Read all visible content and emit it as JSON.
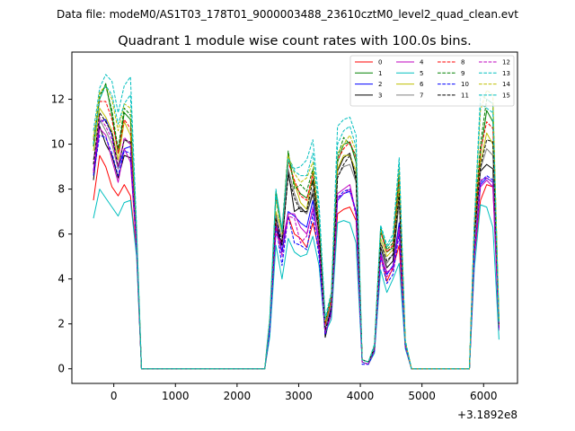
{
  "suptitle": "Data file: modeM0/AS1T03_178T01_9000003488_23610cztM0_level2_quad_clean.evt",
  "chart_data": {
    "type": "line",
    "title": "Quadrant 1 module wise count rates with 100.0s bins.",
    "xlabel": "",
    "ylabel": "",
    "offset_label": "+3.1892e8",
    "xlim": [
      -680,
      6550
    ],
    "ylim": [
      -0.65,
      14.1
    ],
    "xticks": [
      0,
      1000,
      2000,
      3000,
      4000,
      5000,
      6000
    ],
    "xtick_labels": [
      "0",
      "1000",
      "2000",
      "3000",
      "4000",
      "5000",
      "6000"
    ],
    "yticks": [
      0,
      2,
      4,
      6,
      8,
      10,
      12
    ],
    "ytick_labels": [
      "0",
      "2",
      "4",
      "6",
      "8",
      "10",
      "12"
    ],
    "legend_position": "upper right",
    "x": [
      -330,
      -230,
      -130,
      -30,
      70,
      170,
      270,
      370,
      450,
      2450,
      2530,
      2630,
      2730,
      2830,
      2930,
      3030,
      3130,
      3230,
      3330,
      3430,
      3530,
      3630,
      3730,
      3830,
      3930,
      4030,
      4130,
      4230,
      4330,
      4430,
      4530,
      4630,
      4730,
      4830,
      5770,
      5850,
      5950,
      6050,
      6150,
      6250
    ],
    "series": [
      {
        "name": "0",
        "color": "#ff0000",
        "dash": "solid",
        "values": [
          7.5,
          9.5,
          9.0,
          8.1,
          7.7,
          8.2,
          7.7,
          5.2,
          0.0,
          0.0,
          1.5,
          6.5,
          5.2,
          6.8,
          6.0,
          5.8,
          5.4,
          6.5,
          5.3,
          1.6,
          2.5,
          6.9,
          7.1,
          7.2,
          6.6,
          0.3,
          0.2,
          0.8,
          5.0,
          3.9,
          4.5,
          5.5,
          1.0,
          0.0,
          0.0,
          5.0,
          7.5,
          8.2,
          8.1,
          2.2
        ]
      },
      {
        "name": "1",
        "color": "#008000",
        "dash": "solid",
        "values": [
          10.0,
          12.0,
          12.7,
          11.3,
          9.6,
          11.4,
          11.1,
          6.0,
          0.0,
          0.0,
          2.0,
          7.8,
          6.1,
          9.6,
          8.2,
          7.8,
          7.6,
          8.4,
          6.3,
          2.0,
          3.2,
          9.2,
          10.0,
          10.1,
          9.2,
          0.4,
          0.3,
          1.0,
          6.1,
          5.2,
          5.4,
          8.5,
          1.2,
          0.0,
          0.0,
          6.3,
          9.6,
          11.5,
          11.0,
          2.0
        ]
      },
      {
        "name": "2",
        "color": "#0000ff",
        "dash": "solid",
        "values": [
          8.8,
          11.0,
          11.1,
          10.4,
          8.9,
          9.8,
          9.9,
          5.4,
          0.0,
          0.0,
          1.9,
          6.9,
          5.2,
          7.0,
          6.8,
          6.5,
          6.3,
          7.5,
          5.4,
          1.5,
          2.8,
          7.5,
          7.8,
          7.9,
          7.0,
          0.3,
          0.2,
          0.8,
          5.2,
          4.2,
          4.6,
          6.5,
          1.0,
          0.0,
          0.0,
          5.1,
          8.2,
          8.5,
          8.3,
          1.8
        ]
      },
      {
        "name": "3",
        "color": "#000000",
        "dash": "solid",
        "values": [
          8.4,
          10.8,
          10.0,
          9.5,
          8.5,
          9.5,
          9.4,
          5.4,
          0.0,
          0.0,
          1.8,
          6.3,
          5.5,
          8.8,
          7.0,
          7.2,
          6.9,
          7.8,
          6.0,
          1.4,
          2.6,
          8.8,
          9.4,
          9.6,
          8.4,
          0.4,
          0.3,
          0.9,
          5.4,
          4.5,
          4.8,
          7.5,
          1.1,
          0.0,
          0.0,
          5.8,
          8.8,
          9.1,
          8.9,
          1.9
        ]
      },
      {
        "name": "4",
        "color": "#bf00bf",
        "dash": "solid",
        "values": [
          8.7,
          10.7,
          10.4,
          9.3,
          8.3,
          9.8,
          9.2,
          5.3,
          0.0,
          0.0,
          1.7,
          6.0,
          5.6,
          6.9,
          6.9,
          6.3,
          6.0,
          7.1,
          5.8,
          1.6,
          2.4,
          7.8,
          8.0,
          8.2,
          6.9,
          0.3,
          0.2,
          0.8,
          5.1,
          4.3,
          4.5,
          6.2,
          1.0,
          0.0,
          0.0,
          5.0,
          8.1,
          8.4,
          8.1,
          1.7
        ]
      },
      {
        "name": "5",
        "color": "#00bfbf",
        "dash": "solid",
        "values": [
          6.7,
          8.0,
          7.6,
          7.2,
          6.8,
          7.4,
          7.5,
          5.0,
          0.0,
          0.0,
          1.4,
          5.5,
          4.0,
          5.8,
          5.2,
          5.0,
          5.1,
          5.9,
          4.6,
          1.6,
          2.2,
          6.5,
          6.6,
          6.5,
          5.6,
          0.3,
          0.2,
          0.7,
          4.4,
          3.4,
          4.0,
          4.7,
          0.9,
          0.0,
          0.0,
          4.5,
          7.3,
          7.2,
          6.3,
          1.3
        ]
      },
      {
        "name": "6",
        "color": "#bfbf00",
        "dash": "solid",
        "values": [
          9.7,
          11.6,
          11.2,
          10.6,
          9.3,
          11.0,
          10.4,
          5.7,
          0.0,
          0.0,
          2.0,
          7.0,
          6.1,
          9.3,
          8.3,
          7.4,
          7.1,
          8.8,
          6.3,
          1.9,
          3.0,
          8.9,
          9.5,
          9.5,
          8.8,
          0.4,
          0.3,
          0.9,
          5.8,
          5.0,
          5.3,
          8.0,
          1.1,
          0.0,
          0.0,
          6.0,
          9.2,
          10.5,
          10.0,
          1.9
        ]
      },
      {
        "name": "7",
        "color": "#808080",
        "dash": "solid",
        "values": [
          9.3,
          11.1,
          10.6,
          10.0,
          8.9,
          10.2,
          10.0,
          5.5,
          0.0,
          0.0,
          1.9,
          6.8,
          5.8,
          8.9,
          7.8,
          7.1,
          6.9,
          8.0,
          6.1,
          1.8,
          2.9,
          8.6,
          9.0,
          9.1,
          8.3,
          0.4,
          0.3,
          0.9,
          5.6,
          4.7,
          5.1,
          7.6,
          1.1,
          0.0,
          0.0,
          5.8,
          8.9,
          9.8,
          9.5,
          2.0
        ]
      },
      {
        "name": "8",
        "color": "#ff0000",
        "dash": "dashed",
        "values": [
          10.2,
          11.9,
          11.9,
          11.1,
          9.6,
          11.1,
          10.7,
          5.9,
          0.0,
          0.0,
          2.0,
          7.6,
          6.0,
          9.2,
          8.4,
          7.7,
          7.5,
          8.7,
          6.4,
          2.0,
          3.1,
          9.3,
          9.8,
          10.1,
          9.4,
          0.4,
          0.3,
          1.0,
          6.1,
          5.2,
          5.5,
          8.6,
          1.2,
          0.0,
          0.0,
          6.3,
          9.7,
          11.0,
          10.7,
          2.0
        ]
      },
      {
        "name": "9",
        "color": "#008000",
        "dash": "dashed",
        "values": [
          9.9,
          12.2,
          12.6,
          11.5,
          9.8,
          11.6,
          11.3,
          6.0,
          0.0,
          0.0,
          2.1,
          7.9,
          6.2,
          9.7,
          8.0,
          8.2,
          7.9,
          8.9,
          6.5,
          2.1,
          3.3,
          9.4,
          10.3,
          10.0,
          9.5,
          0.4,
          0.3,
          1.0,
          6.3,
          5.3,
          5.6,
          8.8,
          1.2,
          0.0,
          0.0,
          6.5,
          10.0,
          12.0,
          11.8,
          2.1
        ]
      },
      {
        "name": "10",
        "color": "#0000ff",
        "dash": "dashed",
        "values": [
          8.6,
          10.4,
          10.3,
          9.6,
          8.6,
          9.7,
          9.6,
          5.5,
          0.0,
          0.0,
          1.7,
          6.4,
          4.6,
          6.8,
          5.6,
          5.5,
          5.3,
          6.9,
          5.0,
          1.5,
          2.6,
          7.6,
          7.9,
          8.0,
          7.0,
          0.2,
          0.2,
          0.8,
          5.0,
          3.8,
          4.2,
          6.0,
          1.0,
          0.0,
          0.0,
          5.2,
          8.3,
          8.6,
          8.4,
          1.8
        ]
      },
      {
        "name": "11",
        "color": "#000000",
        "dash": "dashed",
        "values": [
          9.1,
          11.4,
          11.0,
          10.5,
          9.0,
          10.2,
          10.1,
          5.6,
          0.0,
          0.0,
          1.9,
          6.7,
          5.6,
          8.6,
          7.6,
          7.0,
          7.0,
          8.4,
          6.0,
          1.7,
          2.7,
          8.5,
          9.1,
          9.5,
          8.6,
          0.4,
          0.3,
          0.9,
          5.6,
          4.8,
          5.1,
          7.8,
          1.1,
          0.0,
          0.0,
          5.9,
          9.0,
          10.2,
          10.1,
          2.0
        ]
      },
      {
        "name": "12",
        "color": "#bf00bf",
        "dash": "dashed",
        "values": [
          8.8,
          11.2,
          10.8,
          10.2,
          9.0,
          10.3,
          10.0,
          5.5,
          0.0,
          0.0,
          1.8,
          6.3,
          5.0,
          6.8,
          6.7,
          5.6,
          5.9,
          7.2,
          5.5,
          1.6,
          2.5,
          7.6,
          7.8,
          8.0,
          6.8,
          0.3,
          0.2,
          0.8,
          5.0,
          4.1,
          4.4,
          6.3,
          1.0,
          0.0,
          0.0,
          5.1,
          8.4,
          8.5,
          8.3,
          1.8
        ]
      },
      {
        "name": "13",
        "color": "#00bfbf",
        "dash": "dashed",
        "values": [
          10.6,
          12.5,
          13.1,
          12.8,
          11.4,
          12.6,
          13.0,
          6.4,
          0.0,
          0.0,
          2.3,
          8.0,
          6.2,
          9.4,
          8.9,
          9.0,
          9.3,
          10.2,
          7.4,
          2.3,
          3.4,
          10.8,
          11.1,
          11.2,
          10.4,
          0.4,
          0.3,
          1.1,
          6.4,
          5.5,
          6.0,
          9.4,
          1.3,
          0.0,
          0.0,
          6.6,
          12.2,
          12.0,
          11.8,
          2.2
        ]
      },
      {
        "name": "14",
        "color": "#bfbf00",
        "dash": "dashed",
        "values": [
          10.3,
          12.3,
          12.6,
          12.0,
          10.6,
          11.8,
          11.6,
          6.1,
          0.0,
          0.0,
          2.2,
          7.5,
          6.0,
          9.5,
          8.7,
          8.3,
          8.5,
          9.2,
          6.9,
          2.1,
          3.3,
          9.6,
          10.0,
          10.4,
          9.7,
          0.4,
          0.3,
          1.0,
          6.2,
          5.4,
          5.8,
          9.0,
          1.2,
          0.0,
          0.0,
          6.5,
          11.5,
          12.4,
          12.2,
          2.1
        ]
      },
      {
        "name": "15",
        "color": "#00bfbf",
        "dash": "dashed",
        "values": [
          10.0,
          12.0,
          12.6,
          12.2,
          10.9,
          11.8,
          12.2,
          6.2,
          0.0,
          0.0,
          2.1,
          7.7,
          6.1,
          9.3,
          8.8,
          8.6,
          8.6,
          9.6,
          7.0,
          2.2,
          3.2,
          10.0,
          10.6,
          10.8,
          9.9,
          0.4,
          0.3,
          1.0,
          6.3,
          5.4,
          5.8,
          9.2,
          1.2,
          0.0,
          0.0,
          6.5,
          11.8,
          11.6,
          11.4,
          2.1
        ]
      }
    ]
  }
}
